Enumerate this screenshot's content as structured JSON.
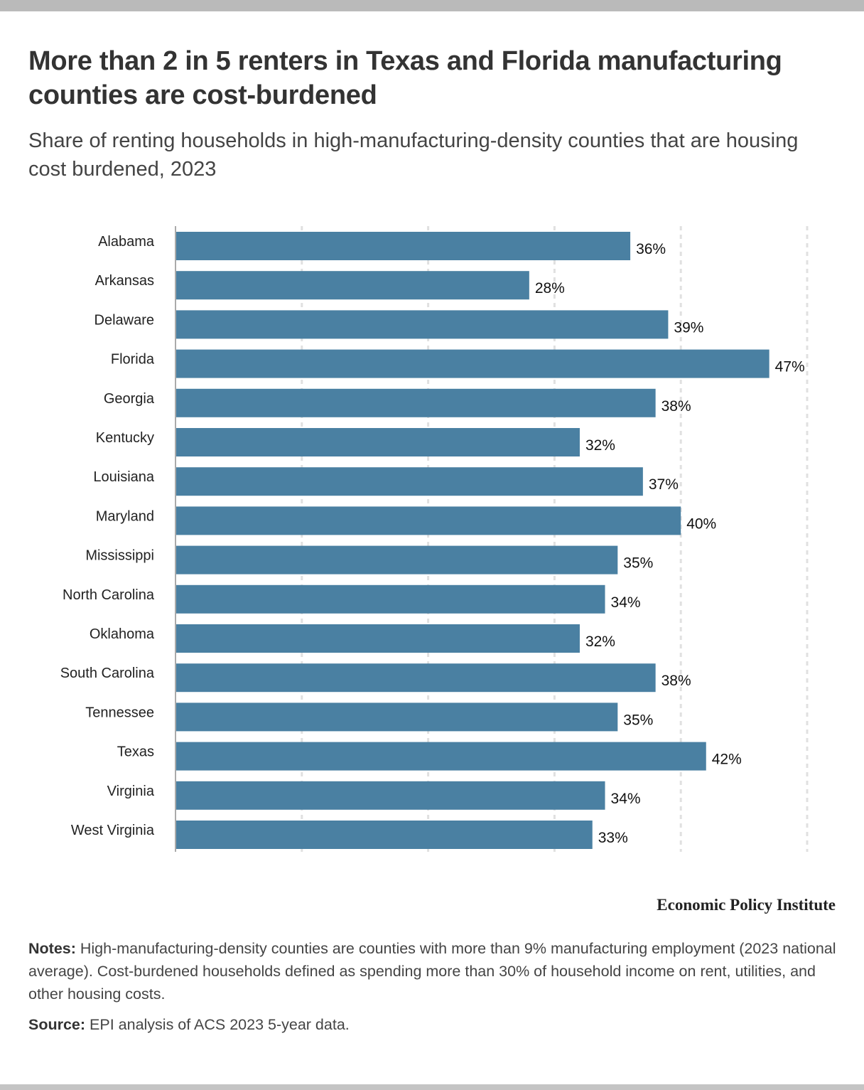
{
  "header": {
    "title": "More than 2 in 5 renters in Texas and Florida manufacturing counties are cost-burdened",
    "subtitle": "Share of renting households in high-manufacturing-density counties that are housing cost burdened, 2023"
  },
  "chart_data": {
    "type": "bar",
    "orientation": "horizontal",
    "title": "More than 2 in 5 renters in Texas and Florida manufacturing counties are cost-burdened",
    "subtitle": "Share of renting households in high-manufacturing-density counties that are housing cost burdened, 2023",
    "xlabel": "",
    "ylabel": "",
    "categories": [
      "Alabama",
      "Arkansas",
      "Delaware",
      "Florida",
      "Georgia",
      "Kentucky",
      "Louisiana",
      "Maryland",
      "Mississippi",
      "North Carolina",
      "Oklahoma",
      "South Carolina",
      "Tennessee",
      "Texas",
      "Virginia",
      "West Virginia"
    ],
    "values": [
      36,
      28,
      39,
      47,
      38,
      32,
      37,
      40,
      35,
      34,
      32,
      38,
      35,
      42,
      34,
      33
    ],
    "value_labels": [
      "36%",
      "28%",
      "39%",
      "47%",
      "38%",
      "32%",
      "37%",
      "40%",
      "35%",
      "34%",
      "32%",
      "38%",
      "35%",
      "42%",
      "34%",
      "33%"
    ],
    "unit": "%",
    "xlim": [
      0,
      50
    ],
    "gridlines": [
      0,
      10,
      20,
      30,
      40,
      50
    ],
    "grid": true,
    "grid_style": "dotted vertical",
    "bar_color": "#4a80a2",
    "legend": "none"
  },
  "footer": {
    "brand": "Economic Policy Institute",
    "notes_label": "Notes:",
    "notes_text": " High-manufacturing-density counties are counties with more than 9% manufacturing employment (2023 national average). Cost-burdened households defined as spending more than 30% of household income on rent, utilities, and other housing costs.",
    "source_label": "Source:",
    "source_text": " EPI analysis of ACS 2023 5-year data."
  }
}
